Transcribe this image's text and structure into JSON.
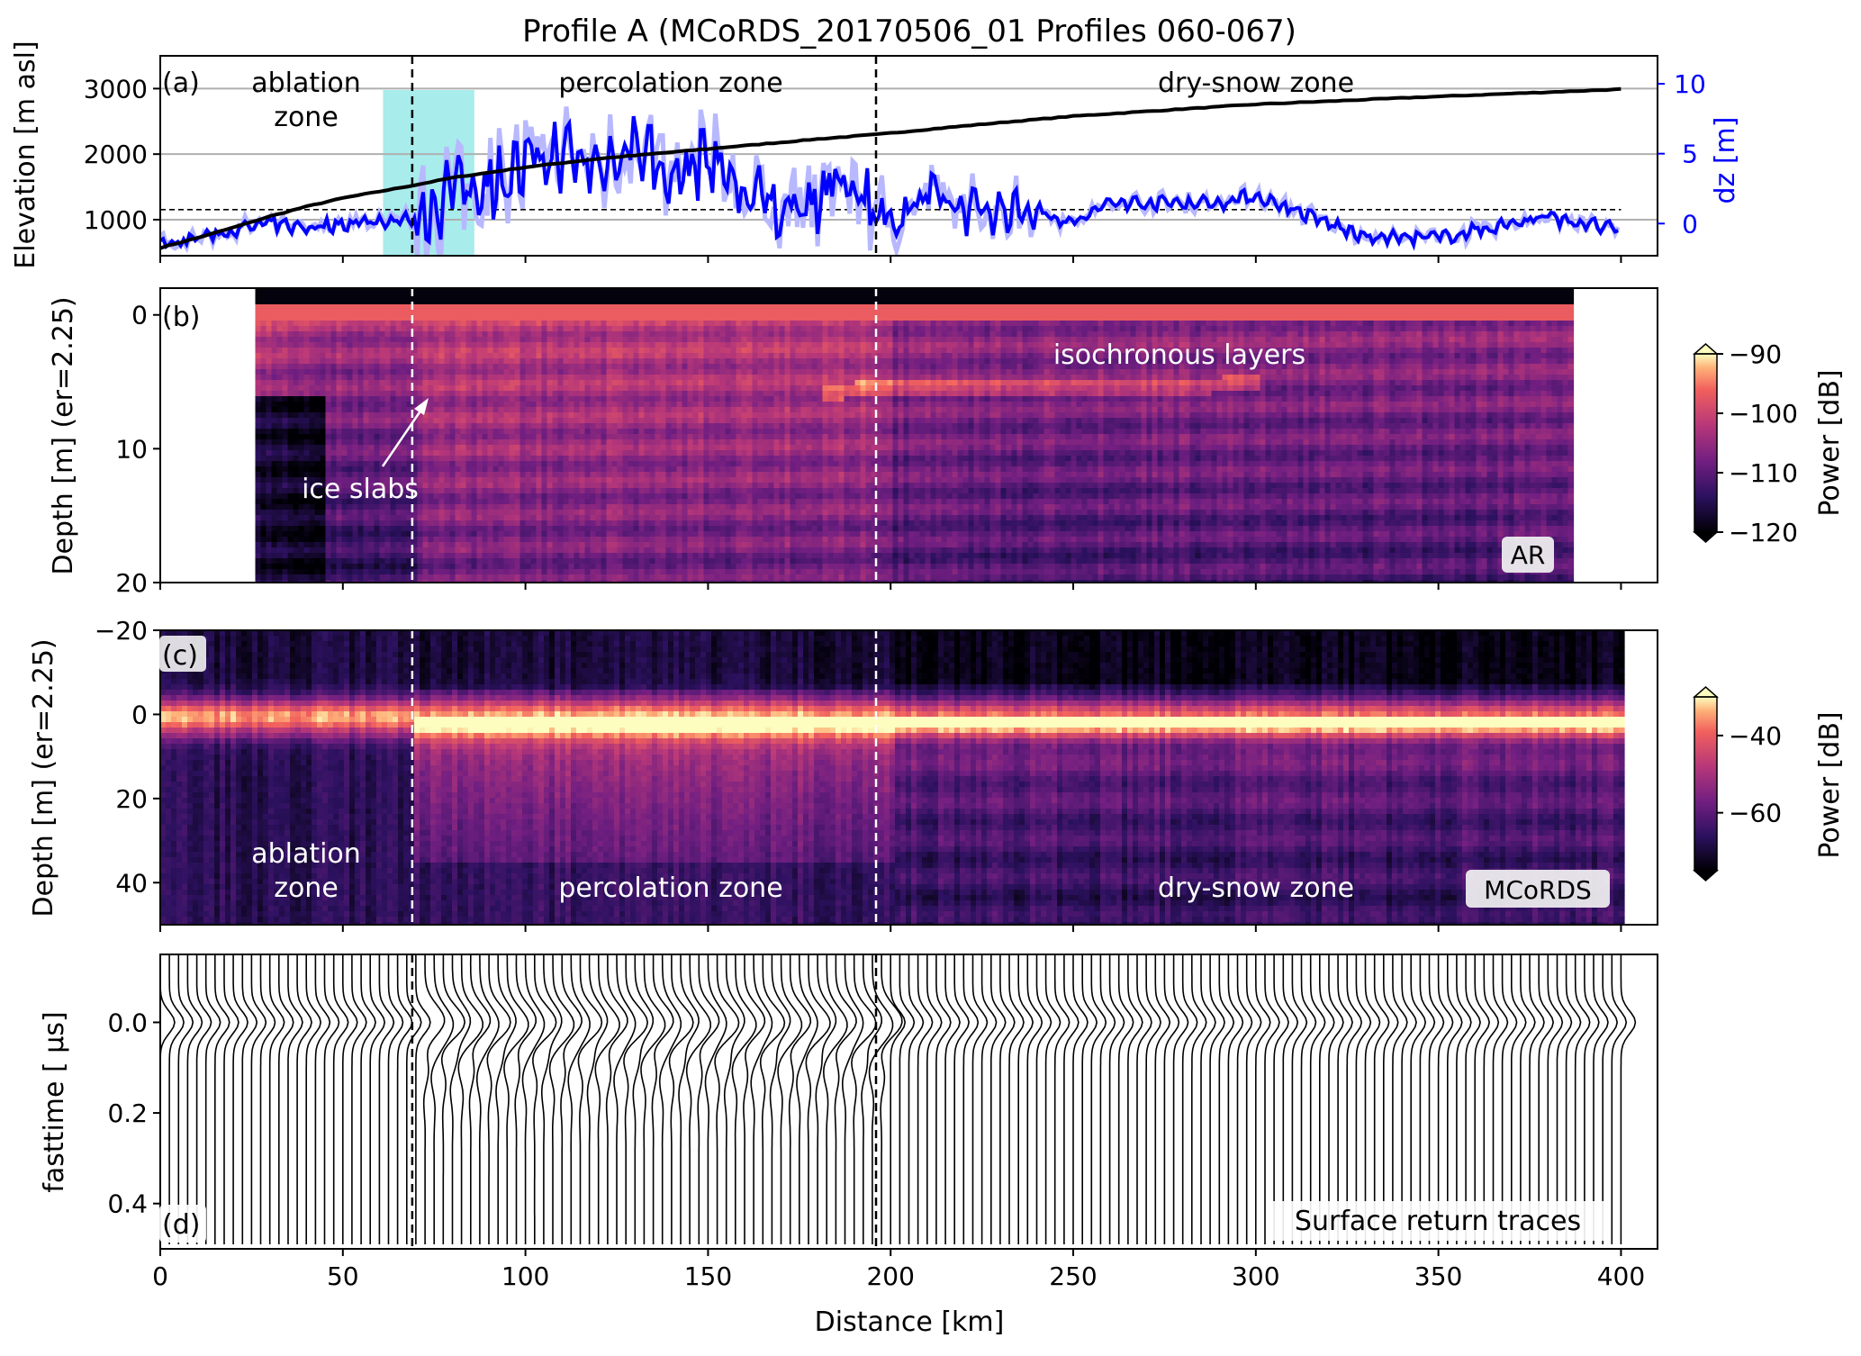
{
  "figure": {
    "title": "Profile A (MCoRDS_20170506_01 Profiles 060-067)",
    "xlabel": "Distance [km]",
    "x_ticks": [
      "0",
      "50",
      "100",
      "150",
      "200",
      "250",
      "300",
      "350",
      "400"
    ],
    "zone_boundaries_km": [
      69,
      196
    ],
    "colors": {
      "elevation": "#000000",
      "dz": "#0000ff",
      "dz_raw": "#b8b8ff",
      "highlight": "#a8ecec",
      "grid": "#b0b0b0"
    }
  },
  "panel_a": {
    "label": "(a)",
    "ylabel": "Elevation [m asl]",
    "ylabel_right": "dz [m]",
    "y_ticks": [
      "1000",
      "2000",
      "3000"
    ],
    "y_ticks_right": [
      "0",
      "5",
      "10"
    ],
    "zone_labels": {
      "ablation_1": "ablation",
      "ablation_2": "zone",
      "percolation": "percolation zone",
      "dry": "dry-snow zone"
    }
  },
  "panel_b": {
    "label": "(b)",
    "ylabel": "Depth [m] (er=2.25)",
    "y_ticks": [
      "0",
      "10",
      "20"
    ],
    "annotation_layers": "isochronous layers",
    "annotation_slabs": "ice slabs",
    "badge": "AR",
    "colorbar_label": "Power [dB]",
    "colorbar_ticks": [
      "−90",
      "−100",
      "−110",
      "−120"
    ]
  },
  "panel_c": {
    "label": "(c)",
    "ylabel": "Depth [m] (er=2.25)",
    "y_ticks": [
      "−20",
      "0",
      "20",
      "40"
    ],
    "zone_labels": {
      "ablation_1": "ablation",
      "ablation_2": "zone",
      "percolation": "percolation zone",
      "dry": "dry-snow zone"
    },
    "badge": "MCoRDS",
    "colorbar_label": "Power [dB]",
    "colorbar_ticks": [
      "−40",
      "−60"
    ]
  },
  "panel_d": {
    "label": "(d)",
    "ylabel": "fasttime [ μs]",
    "y_ticks": [
      "0.0",
      "0.2",
      "0.4"
    ],
    "badge": "Surface return traces"
  },
  "chart_data": [
    {
      "type": "line",
      "panel": "a",
      "xlim": [
        0,
        410
      ],
      "ylim": [
        450,
        3500
      ],
      "y2lim": [
        -2.3,
        12
      ],
      "series": [
        {
          "axis": "left",
          "x": [
            0,
            10,
            20,
            30,
            40,
            50,
            60,
            69,
            80,
            100,
            120,
            150,
            180,
            196,
            220,
            250,
            300,
            350,
            400
          ],
          "values": [
            570,
            720,
            880,
            1050,
            1200,
            1330,
            1430,
            1520,
            1640,
            1800,
            1930,
            2080,
            2230,
            2300,
            2430,
            2580,
            2760,
            2880,
            2990
          ]
        },
        {
          "axis": "right",
          "x": [
            0,
            10,
            20,
            30,
            40,
            50,
            60,
            70,
            80,
            90,
            100,
            110,
            120,
            130,
            140,
            150,
            160,
            170,
            180,
            190,
            200,
            210,
            220,
            230,
            240,
            250,
            260,
            270,
            280,
            290,
            300,
            310,
            320,
            330,
            340,
            350,
            360,
            370,
            380,
            390,
            400
          ],
          "values": [
            -1.5,
            -1,
            -0.5,
            0,
            -0.3,
            0,
            0.2,
            0.3,
            2.5,
            3,
            4,
            5,
            4,
            6,
            3,
            5,
            2,
            1,
            2,
            3,
            0,
            2,
            1,
            1,
            1,
            0,
            1.5,
            1.5,
            1.5,
            1.5,
            2,
            1,
            0,
            -1,
            -1,
            -1,
            -0.5,
            0,
            0.5,
            0,
            -0.5
          ]
        }
      ],
      "hline_dz_m": 1,
      "highlight_x": [
        61,
        86
      ]
    },
    {
      "type": "heatmap",
      "panel": "b",
      "instrument": "AR",
      "xlim": [
        0,
        410
      ],
      "x_extent": [
        26,
        386
      ],
      "ylim": [
        20,
        -2
      ],
      "colorbar_range_db": [
        -120,
        -90
      ]
    },
    {
      "type": "heatmap",
      "panel": "c",
      "instrument": "MCoRDS",
      "xlim": [
        0,
        410
      ],
      "x_extent": [
        0,
        400
      ],
      "ylim": [
        50,
        -20
      ],
      "colorbar_range_db": [
        -75,
        -30
      ]
    },
    {
      "type": "line",
      "panel": "d",
      "xlim": [
        0,
        410
      ],
      "ylim": [
        0.5,
        -0.15
      ],
      "trace_spacing_km": 2.5
    }
  ]
}
